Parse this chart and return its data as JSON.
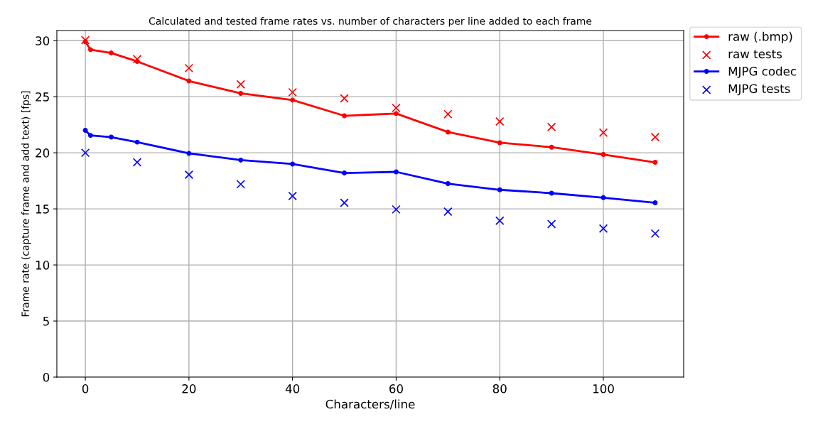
{
  "chart_data": {
    "type": "line",
    "title": "Calculated and tested frame rates vs. number of characters per line added to each frame",
    "xlabel": "Characters/line",
    "ylabel": "Frame rate (capture frame and add text) [fps]",
    "xlim": [
      -5.5,
      115.5
    ],
    "xticks": [
      0,
      20,
      40,
      60,
      80,
      100
    ],
    "ylim": [
      0,
      30.9
    ],
    "yticks": [
      0,
      5,
      10,
      15,
      20,
      25,
      30
    ],
    "grid": true,
    "legend": "top right",
    "series": [
      {
        "name": "raw (.bmp)",
        "marker": "circle",
        "color": "#ff0000",
        "x": [
          0,
          1,
          5,
          10,
          20,
          30,
          40,
          50,
          60,
          70,
          80,
          90,
          100,
          110
        ],
        "values": [
          29.9,
          29.2,
          28.9,
          28.15,
          26.4,
          25.3,
          24.7,
          23.3,
          23.5,
          21.85,
          20.9,
          20.5,
          19.85,
          19.15
        ]
      },
      {
        "name": "raw tests",
        "type": "scatter",
        "marker": "cross",
        "color": "#ff0000",
        "x": [
          0,
          10,
          20,
          30,
          40,
          50,
          60,
          70,
          80,
          90,
          100,
          110
        ],
        "values": [
          30.05,
          28.35,
          27.55,
          26.1,
          25.4,
          24.85,
          24.0,
          23.45,
          22.8,
          22.3,
          21.8,
          21.4
        ]
      },
      {
        "name": "MJPG codec",
        "marker": "circle",
        "color": "#0000ff",
        "x": [
          0,
          1,
          5,
          10,
          20,
          30,
          40,
          50,
          60,
          70,
          80,
          90,
          100,
          110
        ],
        "values": [
          22.0,
          21.55,
          21.4,
          20.95,
          19.95,
          19.35,
          19.0,
          18.2,
          18.3,
          17.25,
          16.7,
          16.4,
          16.0,
          15.55
        ]
      },
      {
        "name": "MJPG tests",
        "type": "scatter",
        "marker": "cross",
        "color": "#0000ff",
        "x": [
          0,
          10,
          20,
          30,
          40,
          50,
          60,
          70,
          80,
          90,
          100,
          110
        ],
        "values": [
          20.0,
          19.15,
          18.05,
          17.2,
          16.15,
          15.55,
          14.95,
          14.75,
          13.95,
          13.65,
          13.25,
          12.8
        ]
      }
    ]
  }
}
